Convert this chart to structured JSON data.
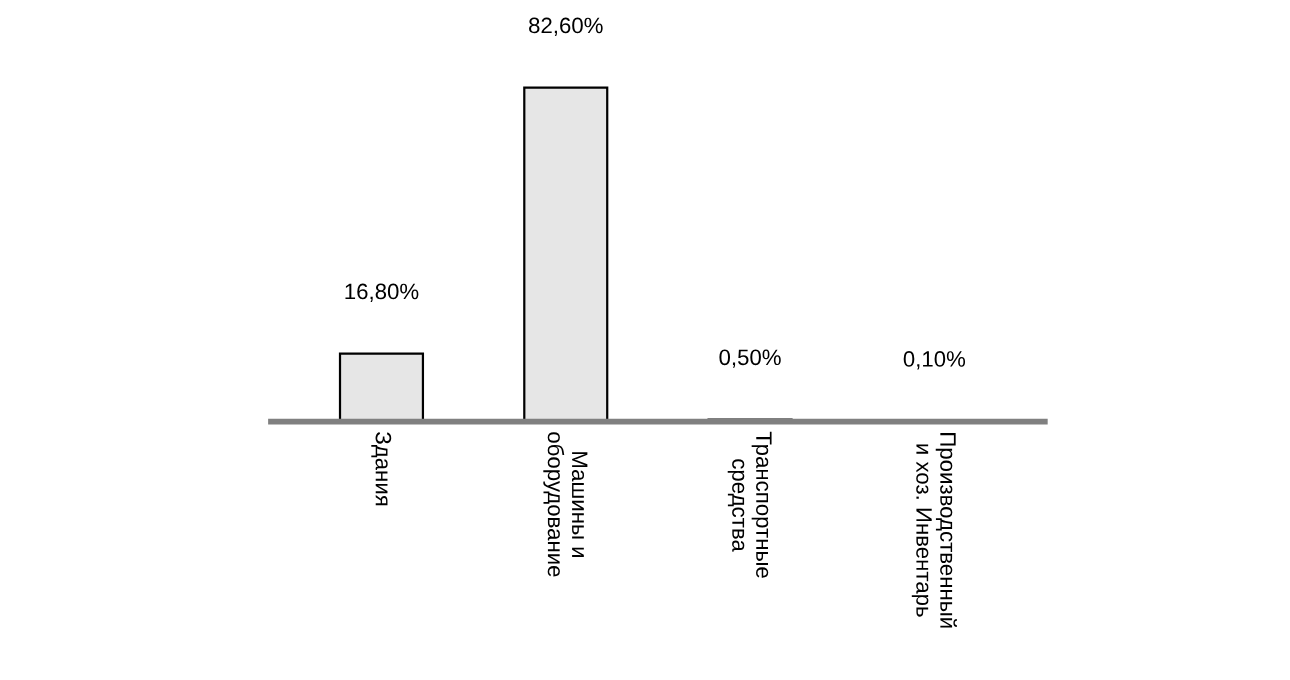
{
  "chart_data": {
    "type": "bar",
    "categories": [
      "Здания",
      "Машины и\nоборудование",
      "Транспортные\nсредства",
      "Производственный\nи хоз. Инвентарь"
    ],
    "values": [
      16.8,
      82.6,
      0.5,
      0.1
    ],
    "value_labels": [
      "16,80%",
      "82,60%",
      "0,50%",
      "0,10%"
    ],
    "color": "#e6e6e6",
    "grid": false,
    "legend": false
  }
}
